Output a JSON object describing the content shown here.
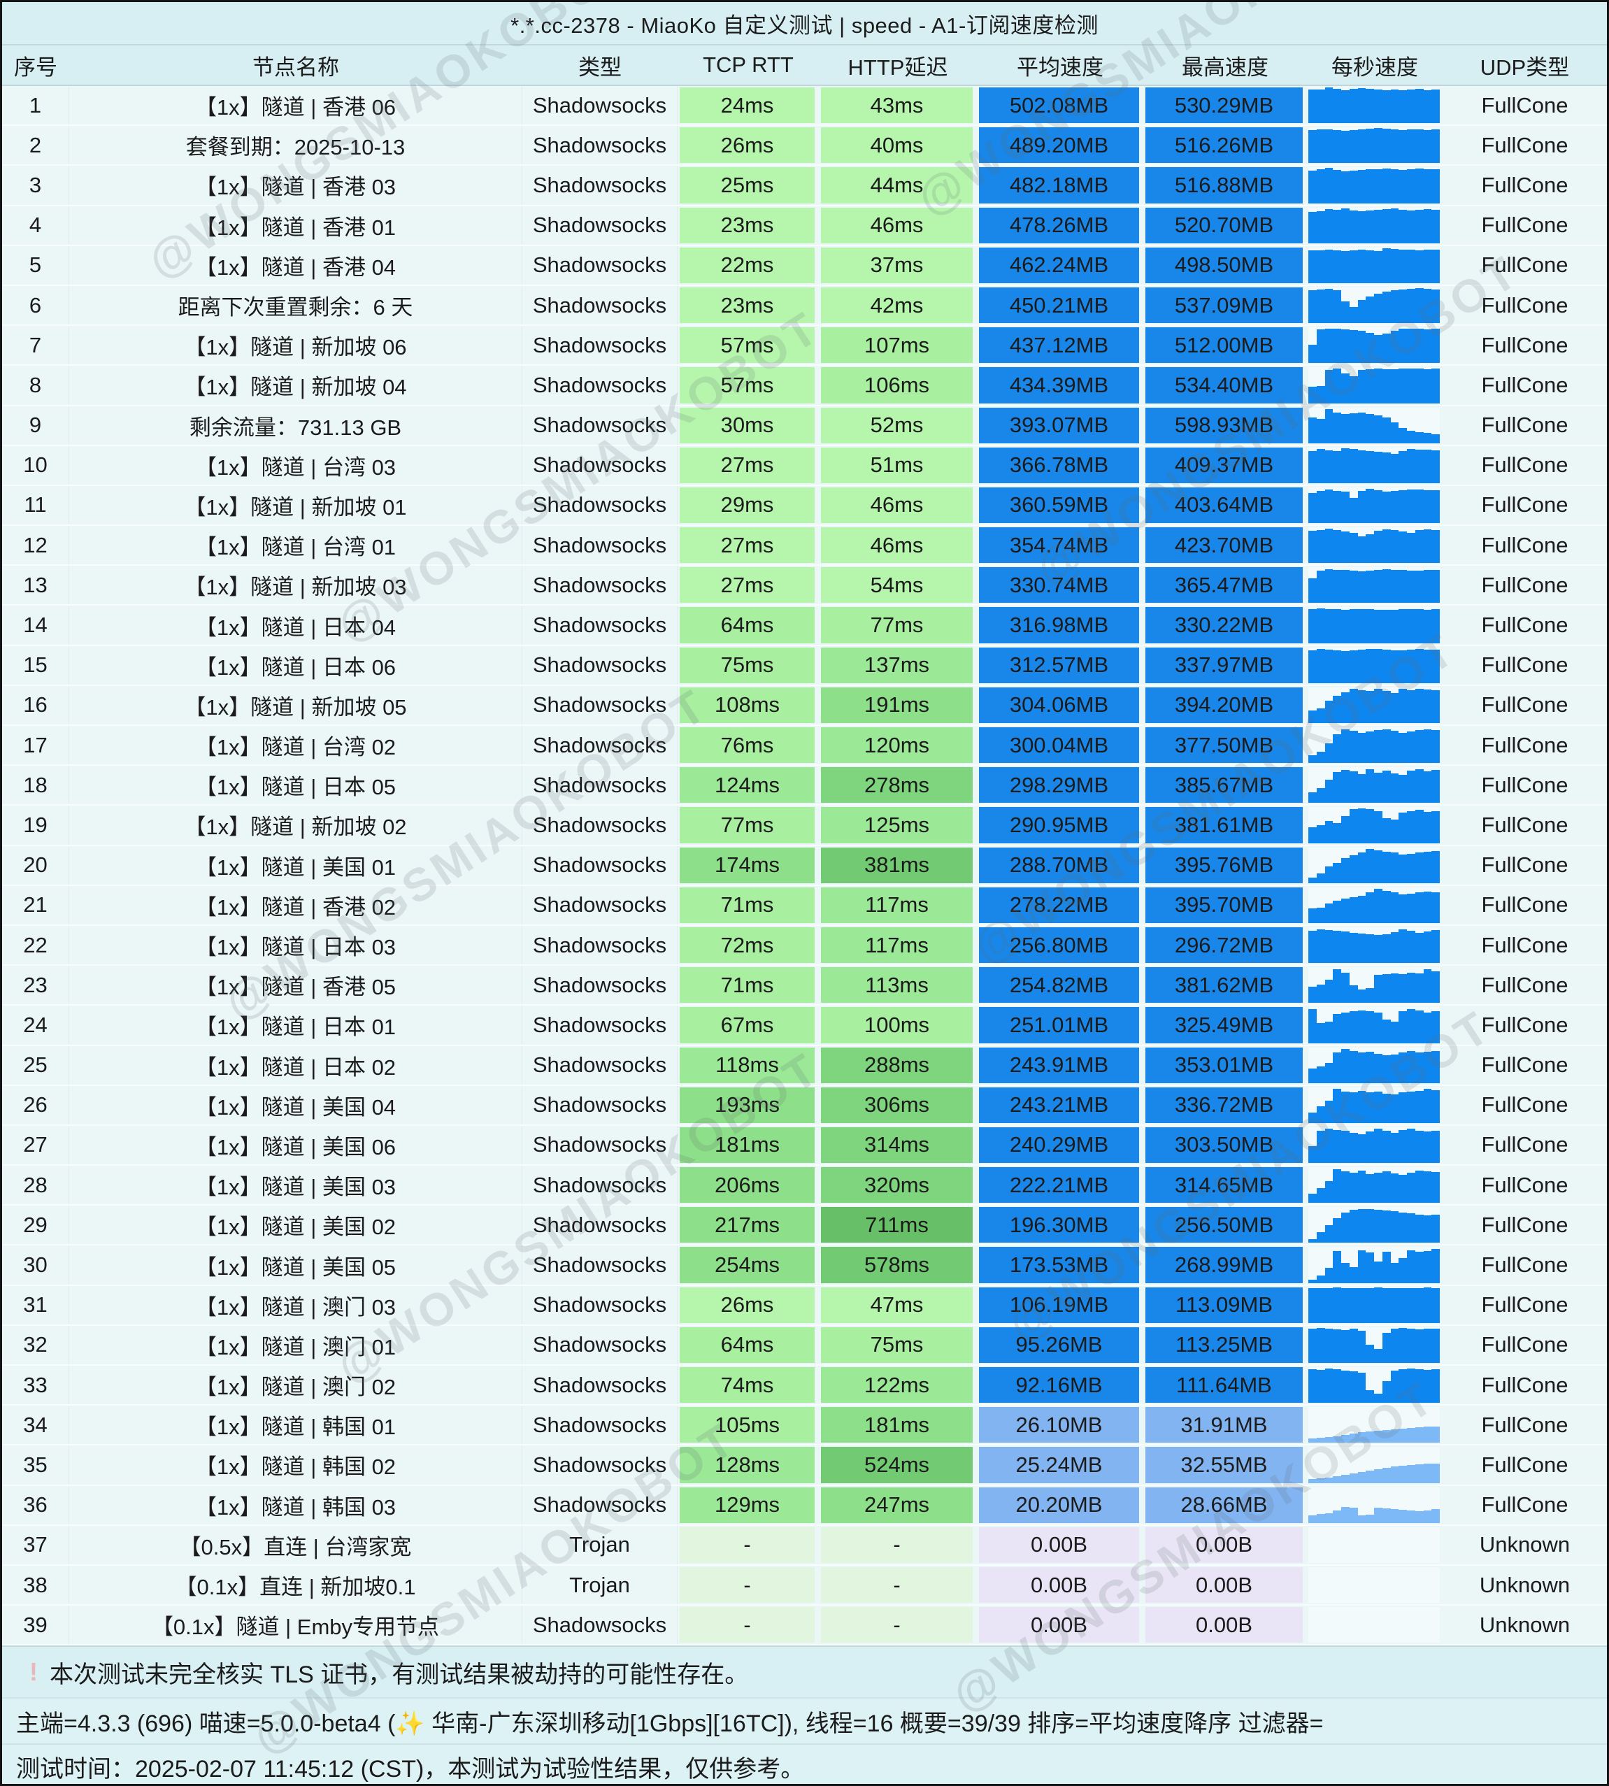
{
  "title": "*.*.cc-2378 - MiaoKo 自定义测试 | speed - A1-订阅速度检测",
  "watermark": "@WONGSMIAOKOBOT",
  "columns": [
    "序号",
    "节点名称",
    "类型",
    "TCP RTT",
    "HTTP延迟",
    "平均速度",
    "最高速度",
    "每秒速度",
    "UDP类型"
  ],
  "colors": {
    "latency": {
      "none": "#e2f6df",
      "l1": "#b6f6ac",
      "l2": "#a8efa0",
      "l3": "#9be897",
      "l4": "#8ddf89",
      "l5": "#7fd57d",
      "l6": "#72cb72",
      "l7": "#67c067"
    },
    "speed": {
      "high": "#1987ea",
      "low": "#83b4f2",
      "zero": "#e9e5f6"
    },
    "spark": {
      "high": "#0e86f0",
      "low": "#7db9f7"
    }
  },
  "rows": [
    {
      "no": "1",
      "name": "【1x】隧道 | 香港 06",
      "type": "Shadowsocks",
      "tcp": "24ms",
      "http": "43ms",
      "avg": "502.08MB",
      "max": "530.29MB",
      "udp": "FullCone",
      "spark": [
        95,
        94,
        100,
        97,
        93,
        96,
        98,
        96,
        95,
        93,
        94,
        92,
        94,
        96,
        93,
        95
      ]
    },
    {
      "no": "2",
      "name": "套餐到期：2025-10-13",
      "type": "Shadowsocks",
      "tcp": "26ms",
      "http": "40ms",
      "avg": "489.20MB",
      "max": "516.26MB",
      "udp": "FullCone",
      "spark": [
        93,
        94,
        95,
        92,
        91,
        92,
        94,
        96,
        99,
        97,
        94,
        93,
        94,
        95,
        93,
        94
      ]
    },
    {
      "no": "3",
      "name": "【1x】隧道 | 香港 03",
      "type": "Shadowsocks",
      "tcp": "25ms",
      "http": "44ms",
      "avg": "482.18MB",
      "max": "516.88MB",
      "udp": "FullCone",
      "spark": [
        91,
        95,
        98,
        92,
        89,
        91,
        93,
        94,
        95,
        97,
        94,
        93,
        95,
        96,
        94,
        95
      ]
    },
    {
      "no": "4",
      "name": "【1x】隧道 | 香港 01",
      "type": "Shadowsocks",
      "tcp": "23ms",
      "http": "46ms",
      "avg": "478.26MB",
      "max": "520.70MB",
      "udp": "FullCone",
      "spark": [
        88,
        90,
        95,
        93,
        97,
        92,
        90,
        91,
        93,
        96,
        98,
        94,
        92,
        93,
        95,
        94
      ]
    },
    {
      "no": "5",
      "name": "【1x】隧道 | 香港 04",
      "type": "Shadowsocks",
      "tcp": "22ms",
      "http": "37ms",
      "avg": "462.24MB",
      "max": "498.50MB",
      "udp": "FullCone",
      "spark": [
        91,
        92,
        93,
        91,
        90,
        92,
        93,
        91,
        90,
        97,
        95,
        94,
        93,
        92,
        93,
        94
      ]
    },
    {
      "no": "6",
      "name": "距离下次重置剩余：6 天",
      "type": "Shadowsocks",
      "tcp": "23ms",
      "http": "42ms",
      "avg": "450.21MB",
      "max": "537.09MB",
      "udp": "FullCone",
      "spark": [
        93,
        95,
        96,
        92,
        60,
        45,
        65,
        75,
        83,
        89,
        92,
        95,
        96,
        97,
        96,
        95
      ]
    },
    {
      "no": "7",
      "name": "【1x】隧道 | 新加坡 06",
      "type": "Shadowsocks",
      "tcp": "57ms",
      "http": "107ms",
      "avg": "437.12MB",
      "max": "512.00MB",
      "udp": "FullCone",
      "spark": [
        52,
        95,
        97,
        96,
        94,
        92,
        90,
        84,
        78,
        83,
        91,
        96,
        97,
        96,
        95,
        96
      ]
    },
    {
      "no": "8",
      "name": "【1x】隧道 | 新加坡 04",
      "type": "Shadowsocks",
      "tcp": "57ms",
      "http": "106ms",
      "avg": "434.39MB",
      "max": "534.40MB",
      "udp": "FullCone",
      "spark": [
        45,
        48,
        92,
        97,
        84,
        76,
        93,
        95,
        96,
        95,
        94,
        96,
        97,
        96,
        95,
        96
      ]
    },
    {
      "no": "9",
      "name": "剩余流量：731.13 GB",
      "type": "Shadowsocks",
      "tcp": "30ms",
      "http": "52ms",
      "avg": "393.07MB",
      "max": "598.93MB",
      "udp": "FullCone",
      "spark": [
        72,
        68,
        95,
        86,
        82,
        84,
        86,
        82,
        78,
        72,
        58,
        42,
        34,
        30,
        28,
        25
      ]
    },
    {
      "no": "10",
      "name": "【1x】隧道 | 台湾 03",
      "type": "Shadowsocks",
      "tcp": "27ms",
      "http": "51ms",
      "avg": "366.78MB",
      "max": "409.37MB",
      "udp": "FullCone",
      "spark": [
        90,
        95,
        92,
        90,
        97,
        95,
        92,
        90,
        88,
        85,
        82,
        90,
        95,
        94,
        93,
        92
      ]
    },
    {
      "no": "11",
      "name": "【1x】隧道 | 新加坡 01",
      "type": "Shadowsocks",
      "tcp": "29ms",
      "http": "46ms",
      "avg": "360.59MB",
      "max": "403.64MB",
      "udp": "FullCone",
      "spark": [
        85,
        90,
        93,
        90,
        88,
        70,
        90,
        95,
        92,
        88,
        90,
        92,
        94,
        93,
        92,
        91
      ]
    },
    {
      "no": "12",
      "name": "【1x】隧道 | 台湾 01",
      "type": "Shadowsocks",
      "tcp": "27ms",
      "http": "46ms",
      "avg": "354.74MB",
      "max": "423.70MB",
      "udp": "FullCone",
      "spark": [
        90,
        93,
        96,
        92,
        88,
        84,
        74,
        81,
        90,
        95,
        92,
        88,
        85,
        92,
        95,
        93
      ]
    },
    {
      "no": "13",
      "name": "【1x】隧道 | 新加坡 03",
      "type": "Shadowsocks",
      "tcp": "27ms",
      "http": "54ms",
      "avg": "330.74MB",
      "max": "365.47MB",
      "udp": "FullCone",
      "spark": [
        70,
        90,
        95,
        93,
        92,
        90,
        88,
        90,
        92,
        94,
        93,
        92,
        90,
        91,
        93,
        92
      ]
    },
    {
      "no": "14",
      "name": "【1x】隧道 | 日本 04",
      "type": "Shadowsocks",
      "tcp": "64ms",
      "http": "77ms",
      "avg": "316.98MB",
      "max": "330.22MB",
      "udp": "FullCone",
      "spark": [
        95,
        97,
        96,
        95,
        94,
        95,
        96,
        95,
        94,
        93,
        94,
        95,
        96,
        95,
        94,
        95
      ]
    },
    {
      "no": "15",
      "name": "【1x】隧道 | 日本 06",
      "type": "Shadowsocks",
      "tcp": "75ms",
      "http": "137ms",
      "avg": "312.57MB",
      "max": "337.97MB",
      "udp": "FullCone",
      "spark": [
        92,
        95,
        93,
        91,
        90,
        92,
        94,
        96,
        95,
        93,
        92,
        91,
        93,
        95,
        94,
        93
      ]
    },
    {
      "no": "16",
      "name": "【1x】隧道 | 新加坡 05",
      "type": "Shadowsocks",
      "tcp": "108ms",
      "http": "191ms",
      "avg": "304.06MB",
      "max": "394.20MB",
      "udp": "FullCone",
      "spark": [
        35,
        42,
        62,
        76,
        86,
        95,
        92,
        90,
        96,
        90,
        85,
        95,
        92,
        96,
        94,
        92
      ]
    },
    {
      "no": "17",
      "name": "【1x】隧道 | 台湾 02",
      "type": "Shadowsocks",
      "tcp": "76ms",
      "http": "120ms",
      "avg": "300.04MB",
      "max": "377.50MB",
      "udp": "FullCone",
      "spark": [
        22,
        32,
        56,
        80,
        95,
        90,
        85,
        88,
        92,
        95,
        90,
        85,
        88,
        92,
        95,
        93
      ]
    },
    {
      "no": "18",
      "name": "【1x】隧道 | 日本 05",
      "type": "Shadowsocks",
      "tcp": "124ms",
      "http": "278ms",
      "avg": "298.29MB",
      "max": "385.67MB",
      "udp": "FullCone",
      "spark": [
        30,
        42,
        66,
        86,
        92,
        88,
        80,
        95,
        85,
        90,
        82,
        78,
        90,
        95,
        88,
        92
      ]
    },
    {
      "no": "19",
      "name": "【1x】隧道 | 新加坡 02",
      "type": "Shadowsocks",
      "tcp": "77ms",
      "http": "125ms",
      "avg": "290.95MB",
      "max": "381.61MB",
      "udp": "FullCone",
      "spark": [
        45,
        50,
        62,
        56,
        76,
        95,
        96,
        94,
        90,
        70,
        66,
        85,
        90,
        92,
        88,
        90
      ]
    },
    {
      "no": "20",
      "name": "【1x】隧道 | 美国 01",
      "type": "Shadowsocks",
      "tcp": "174ms",
      "http": "381ms",
      "avg": "288.70MB",
      "max": "395.76MB",
      "udp": "FullCone",
      "spark": [
        15,
        26,
        46,
        56,
        70,
        78,
        86,
        95,
        92,
        88,
        85,
        80,
        82,
        85,
        88,
        90
      ]
    },
    {
      "no": "21",
      "name": "【1x】隧道 | 香港 02",
      "type": "Shadowsocks",
      "tcp": "71ms",
      "http": "117ms",
      "avg": "278.22MB",
      "max": "395.70MB",
      "udp": "FullCone",
      "spark": [
        40,
        43,
        55,
        62,
        68,
        72,
        76,
        86,
        95,
        90,
        85,
        80,
        82,
        85,
        88,
        86
      ]
    },
    {
      "no": "22",
      "name": "【1x】隧道 | 日本 03",
      "type": "Shadowsocks",
      "tcp": "72ms",
      "http": "117ms",
      "avg": "256.80MB",
      "max": "296.72MB",
      "udp": "FullCone",
      "spark": [
        90,
        95,
        92,
        90,
        88,
        85,
        82,
        80,
        78,
        81,
        86,
        95,
        90,
        85,
        88,
        92
      ]
    },
    {
      "no": "23",
      "name": "【1x】隧道 | 香港 05",
      "type": "Shadowsocks",
      "tcp": "71ms",
      "http": "113ms",
      "avg": "254.82MB",
      "max": "381.62MB",
      "udp": "FullCone",
      "spark": [
        45,
        52,
        65,
        95,
        85,
        50,
        38,
        42,
        78,
        80,
        82,
        80,
        85,
        82,
        95,
        88
      ]
    },
    {
      "no": "24",
      "name": "【1x】隧道 | 日本 01",
      "type": "Shadowsocks",
      "tcp": "67ms",
      "http": "100ms",
      "avg": "251.01MB",
      "max": "325.49MB",
      "udp": "FullCone",
      "spark": [
        95,
        55,
        60,
        82,
        85,
        88,
        90,
        88,
        85,
        65,
        60,
        88,
        95,
        90,
        85,
        88
      ]
    },
    {
      "no": "25",
      "name": "【1x】隧道 | 日本 02",
      "type": "Shadowsocks",
      "tcp": "118ms",
      "http": "288ms",
      "avg": "243.91MB",
      "max": "353.01MB",
      "udp": "FullCone",
      "spark": [
        40,
        46,
        56,
        85,
        95,
        90,
        85,
        88,
        82,
        78,
        80,
        85,
        90,
        85,
        88,
        90
      ]
    },
    {
      "no": "26",
      "name": "【1x】隧道 | 美国 04",
      "type": "Shadowsocks",
      "tcp": "193ms",
      "http": "306ms",
      "avg": "243.21MB",
      "max": "336.72MB",
      "udp": "FullCone",
      "spark": [
        30,
        46,
        62,
        95,
        88,
        85,
        90,
        85,
        88,
        82,
        80,
        85,
        88,
        90,
        95,
        92
      ]
    },
    {
      "no": "27",
      "name": "【1x】隧道 | 美国 06",
      "type": "Shadowsocks",
      "tcp": "181ms",
      "http": "314ms",
      "avg": "240.29MB",
      "max": "303.50MB",
      "udp": "FullCone",
      "spark": [
        48,
        90,
        95,
        92,
        90,
        85,
        80,
        88,
        95,
        90,
        85,
        92,
        95,
        90,
        88,
        90
      ]
    },
    {
      "no": "28",
      "name": "【1x】隧道 | 美国 03",
      "type": "Shadowsocks",
      "tcp": "206ms",
      "http": "320ms",
      "avg": "222.21MB",
      "max": "314.65MB",
      "udp": "FullCone",
      "spark": [
        25,
        42,
        62,
        95,
        88,
        85,
        90,
        80,
        85,
        88,
        82,
        78,
        85,
        90,
        88,
        86
      ]
    },
    {
      "no": "29",
      "name": "【1x】隧道 | 美国 02",
      "type": "Shadowsocks",
      "tcp": "217ms",
      "http": "711ms",
      "avg": "196.30MB",
      "max": "256.50MB",
      "udp": "FullCone",
      "spark": [
        10,
        30,
        50,
        70,
        85,
        92,
        95,
        95,
        92,
        90,
        88,
        85,
        82,
        80,
        78,
        80
      ]
    },
    {
      "no": "30",
      "name": "【1x】隧道 | 美国 05",
      "type": "Shadowsocks",
      "tcp": "254ms",
      "http": "578ms",
      "avg": "173.53MB",
      "max": "268.99MB",
      "udp": "FullCone",
      "spark": [
        10,
        20,
        42,
        90,
        55,
        45,
        92,
        85,
        60,
        88,
        55,
        70,
        92,
        88,
        90,
        95
      ]
    },
    {
      "no": "31",
      "name": "【1x】隧道 | 澳门 03",
      "type": "Shadowsocks",
      "tcp": "26ms",
      "http": "47ms",
      "avg": "106.19MB",
      "max": "113.09MB",
      "udp": "FullCone",
      "spark": [
        98,
        97,
        98,
        99,
        97,
        98,
        97,
        98,
        99,
        98,
        97,
        98,
        97,
        98,
        99,
        98
      ]
    },
    {
      "no": "32",
      "name": "【1x】隧道 | 澳门 01",
      "type": "Shadowsocks",
      "tcp": "64ms",
      "http": "75ms",
      "avg": "95.26MB",
      "max": "113.25MB",
      "udp": "FullCone",
      "spark": [
        95,
        98,
        96,
        94,
        92,
        95,
        90,
        50,
        40,
        85,
        95,
        98,
        96,
        94,
        95,
        96
      ]
    },
    {
      "no": "33",
      "name": "【1x】隧道 | 澳门 02",
      "type": "Shadowsocks",
      "tcp": "74ms",
      "http": "122ms",
      "avg": "92.16MB",
      "max": "111.64MB",
      "udp": "FullCone",
      "spark": [
        95,
        92,
        96,
        94,
        90,
        88,
        85,
        35,
        25,
        60,
        90,
        95,
        96,
        94,
        92,
        95
      ]
    },
    {
      "no": "34",
      "name": "【1x】隧道 | 韩国 01",
      "type": "Shadowsocks",
      "tcp": "105ms",
      "http": "181ms",
      "avg": "26.10MB",
      "max": "31.91MB",
      "udp": "FullCone",
      "spark": [
        12,
        14,
        16,
        18,
        22,
        26,
        30,
        32,
        34,
        36,
        38,
        40,
        42,
        44,
        45,
        46
      ]
    },
    {
      "no": "35",
      "name": "【1x】隧道 | 韩国 02",
      "type": "Shadowsocks",
      "tcp": "128ms",
      "http": "524ms",
      "avg": "25.24MB",
      "max": "32.55MB",
      "udp": "FullCone",
      "spark": [
        10,
        12,
        15,
        18,
        22,
        26,
        30,
        34,
        38,
        42,
        46,
        48,
        50,
        52,
        53,
        54
      ]
    },
    {
      "no": "36",
      "name": "【1x】隧道 | 韩国 03",
      "type": "Shadowsocks",
      "tcp": "129ms",
      "http": "247ms",
      "avg": "20.20MB",
      "max": "28.66MB",
      "udp": "FullCone",
      "spark": [
        22,
        24,
        26,
        34,
        44,
        43,
        21,
        23,
        43,
        40,
        38,
        36,
        34,
        32,
        35,
        38
      ]
    },
    {
      "no": "37",
      "name": "【0.5x】直连 | 台湾家宽",
      "type": "Trojan",
      "tcp": "-",
      "http": "-",
      "avg": "0.00B",
      "max": "0.00B",
      "udp": "Unknown",
      "spark": []
    },
    {
      "no": "38",
      "name": "【0.1x】直连 | 新加坡0.1",
      "type": "Trojan",
      "tcp": "-",
      "http": "-",
      "avg": "0.00B",
      "max": "0.00B",
      "udp": "Unknown",
      "spark": []
    },
    {
      "no": "39",
      "name": "【0.1x】隧道 | Emby专用节点",
      "type": "Shadowsocks",
      "tcp": "-",
      "http": "-",
      "avg": "0.00B",
      "max": "0.00B",
      "udp": "Unknown",
      "spark": []
    }
  ],
  "footer": {
    "warning_icon": "!",
    "warning": "本次测试未完全核实 TLS 证书，有测试结果被劫持的可能性存在。",
    "info": "主端=4.3.3 (696) 喵速=5.0.0-beta4 (✨ 华南-广东深圳移动[1Gbps][16TC]), 线程=16 概要=39/39 排序=平均速度降序 过滤器=",
    "time": "测试时间：2025-02-07 11:45:12 (CST)，本测试为试验性结果，仅供参考。"
  }
}
